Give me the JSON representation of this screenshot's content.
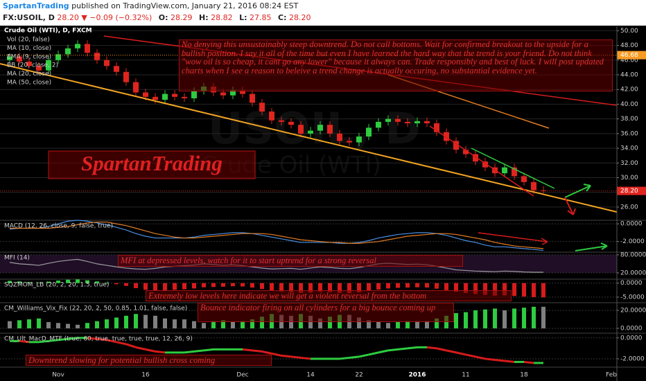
{
  "header": {
    "author": "SpartanTrading",
    "published": "published on TradingView.com, January 21, 2016 08:24 EST",
    "symbol": "FX:USOIL, D",
    "last": "28.20",
    "change": "▼ −0.09 (−0.32%)",
    "open_label": "O:",
    "open": "28.29",
    "high_label": "H:",
    "high": "28.82",
    "low_label": "L:",
    "low": "27.85",
    "close_label": "C:",
    "close": "28.20"
  },
  "chart_data": [
    {
      "type": "candlestick",
      "title": "Crude Oil (WTI), D, FXCM",
      "indicators": [
        "Vol (20, false)",
        "MA (10, close)",
        "EMA (9, close)",
        "BB (20, close, 2)",
        "MA (20, close)",
        "MA (50, close)"
      ],
      "watermark_symbol": "USOIL, D",
      "watermark_name": "Crude Oil (WTI)",
      "logo": "SpartanTrading",
      "annotation": "No denying this unsustainably steep downtrend. Do not call bottoms. Wait for confirmed breakout to the upside for a bullish position. I say it all of the time but even I have learned the hard way that the trend is your friend. Do not think \"wow oil is so cheap, it cant go any lower\" because it always can. Trade responsibly and best of luck. I will post updated charts when I see a reason to beleive a trend change is actually occuring, no substantial evidence yet.",
      "categories": [
        null,
        null,
        null,
        null,
        null,
        "Nov",
        null,
        null,
        null,
        null,
        null,
        null,
        null,
        null,
        "16",
        null,
        null,
        null,
        null,
        null,
        null,
        null,
        null,
        null,
        "Dec",
        null,
        null,
        null,
        null,
        null,
        null,
        "14",
        null,
        null,
        null,
        null,
        "22",
        null,
        null,
        null,
        null,
        null,
        "2016",
        null,
        null,
        null,
        null,
        "11",
        null,
        null,
        null,
        null,
        null,
        "18",
        null,
        null,
        null,
        null,
        null,
        null,
        null,
        null,
        "Feb"
      ],
      "candles": [
        [
          46.0,
          46.9,
          45.6,
          46.5
        ],
        [
          46.5,
          47.0,
          45.4,
          45.8
        ],
        [
          45.8,
          46.3,
          44.8,
          45.2
        ],
        [
          45.2,
          45.7,
          44.1,
          44.6
        ],
        [
          44.6,
          46.5,
          44.1,
          46.0
        ],
        [
          46.0,
          47.3,
          45.5,
          46.8
        ],
        [
          46.8,
          48.1,
          46.3,
          47.6
        ],
        [
          47.6,
          48.7,
          47.1,
          48.2
        ],
        [
          48.2,
          48.7,
          46.5,
          47.0
        ],
        [
          47.0,
          47.5,
          45.5,
          46.0
        ],
        [
          46.0,
          46.5,
          44.7,
          45.2
        ],
        [
          45.2,
          45.7,
          43.9,
          44.4
        ],
        [
          44.4,
          44.9,
          42.5,
          43.0
        ],
        [
          43.0,
          43.5,
          41.1,
          41.6
        ],
        [
          41.6,
          42.1,
          40.5,
          41.0
        ],
        [
          41.0,
          41.5,
          40.1,
          40.6
        ],
        [
          40.6,
          41.9,
          40.1,
          41.4
        ],
        [
          41.4,
          41.9,
          40.5,
          41.0
        ],
        [
          41.0,
          41.5,
          40.3,
          40.8
        ],
        [
          40.8,
          42.3,
          40.3,
          41.8
        ],
        [
          41.8,
          42.9,
          41.3,
          42.4
        ],
        [
          42.4,
          42.9,
          41.1,
          41.6
        ],
        [
          41.6,
          42.1,
          40.7,
          41.2
        ],
        [
          41.2,
          42.4,
          40.7,
          41.9
        ],
        [
          41.9,
          42.4,
          40.9,
          41.4
        ],
        [
          41.4,
          41.9,
          39.7,
          40.2
        ],
        [
          40.2,
          40.7,
          38.5,
          39.0
        ],
        [
          39.0,
          39.5,
          37.3,
          37.8
        ],
        [
          37.8,
          38.3,
          37.1,
          37.6
        ],
        [
          37.6,
          38.1,
          36.7,
          37.2
        ],
        [
          37.2,
          37.7,
          35.5,
          36.0
        ],
        [
          36.0,
          36.9,
          35.5,
          36.4
        ],
        [
          36.4,
          37.7,
          35.9,
          37.2
        ],
        [
          37.2,
          37.7,
          35.5,
          36.0
        ],
        [
          36.0,
          36.5,
          34.5,
          35.0
        ],
        [
          35.0,
          35.5,
          34.3,
          34.8
        ],
        [
          34.8,
          36.1,
          34.3,
          35.6
        ],
        [
          35.6,
          37.3,
          35.1,
          36.8
        ],
        [
          36.8,
          38.1,
          36.3,
          37.6
        ],
        [
          37.6,
          38.5,
          37.1,
          38.0
        ],
        [
          38.0,
          38.5,
          37.1,
          37.6
        ],
        [
          37.6,
          38.1,
          36.9,
          37.4
        ],
        [
          37.4,
          38.2,
          36.9,
          37.7
        ],
        [
          37.7,
          38.2,
          36.9,
          37.4
        ],
        [
          37.4,
          37.9,
          35.7,
          36.2
        ],
        [
          36.2,
          36.7,
          34.5,
          35.0
        ],
        [
          35.0,
          35.5,
          33.3,
          33.8
        ],
        [
          33.8,
          34.3,
          32.7,
          33.2
        ],
        [
          33.2,
          33.7,
          31.7,
          32.2
        ],
        [
          32.2,
          32.7,
          30.9,
          31.4
        ],
        [
          31.4,
          31.9,
          30.1,
          30.6
        ],
        [
          30.6,
          31.9,
          30.1,
          31.4
        ],
        [
          31.4,
          31.9,
          29.7,
          30.2
        ],
        [
          30.2,
          30.7,
          28.9,
          29.4
        ],
        [
          29.4,
          29.9,
          27.8,
          28.29
        ],
        [
          28.29,
          28.82,
          27.85,
          28.2
        ],
        null,
        null,
        null,
        null,
        null,
        null,
        null
      ],
      "up_color": "#2ecc40",
      "down_color": "#e0251f",
      "price_markers": [
        {
          "value": 28.2,
          "label": "28.20",
          "color": "#e0251f"
        },
        {
          "value": 46.68,
          "label": "46.68",
          "color": "#f79b23"
        }
      ],
      "ylim": [
        24.2,
        50.6
      ],
      "yticks": [
        {
          "value": 26,
          "label": "26.00"
        },
        {
          "value": 28,
          "label": "28.00"
        },
        {
          "value": 30,
          "label": "30.00"
        },
        {
          "value": 32,
          "label": "32.00"
        },
        {
          "value": 34,
          "label": "34.00"
        },
        {
          "value": 36,
          "label": "36.00"
        },
        {
          "value": 38,
          "label": "38.00"
        },
        {
          "value": 40,
          "label": "40.00"
        },
        {
          "value": 42,
          "label": "42.00"
        },
        {
          "value": 44,
          "label": "44.00"
        },
        {
          "value": 46,
          "label": "46.00"
        },
        {
          "value": 48,
          "label": "48.00"
        },
        {
          "value": 50,
          "label": "50.00"
        }
      ],
      "grid": true
    },
    {
      "type": "line",
      "title": "MACD (12, 26, close, 9, false, true)",
      "series": [
        {
          "color": "#4a90e2",
          "values": [
            -0.6,
            -0.5,
            -0.5,
            -0.5,
            -0.3,
            0.0,
            0.3,
            0.4,
            0.3,
            0.1,
            -0.1,
            -0.4,
            -0.7,
            -1.1,
            -1.4,
            -1.6,
            -1.6,
            -1.6,
            -1.6,
            -1.5,
            -1.3,
            -1.2,
            -1.1,
            -1.0,
            -1.0,
            -1.1,
            -1.3,
            -1.5,
            -1.7,
            -1.9,
            -2.1,
            -2.1,
            -2.1,
            -2.1,
            -2.2,
            -2.2,
            -2.1,
            -1.9,
            -1.6,
            -1.4,
            -1.2,
            -1.1,
            -1.0,
            -1.0,
            -1.1,
            -1.3,
            -1.6,
            -1.9,
            -2.1,
            -2.4,
            -2.6,
            -2.6,
            -2.7,
            -2.8,
            -2.9,
            -3.0
          ]
        },
        {
          "color": "#e67e22",
          "values": [
            -0.5,
            -0.5,
            -0.5,
            -0.5,
            -0.5,
            -0.4,
            -0.3,
            -0.1,
            0.1,
            0.2,
            0.2,
            0.0,
            -0.2,
            -0.5,
            -0.8,
            -1.1,
            -1.3,
            -1.5,
            -1.6,
            -1.6,
            -1.5,
            -1.4,
            -1.3,
            -1.2,
            -1.1,
            -1.1,
            -1.1,
            -1.2,
            -1.4,
            -1.6,
            -1.8,
            -1.9,
            -2.0,
            -2.1,
            -2.1,
            -2.2,
            -2.2,
            -2.1,
            -2.0,
            -1.8,
            -1.6,
            -1.4,
            -1.3,
            -1.2,
            -1.1,
            -1.1,
            -1.2,
            -1.4,
            -1.6,
            -1.8,
            -2.1,
            -2.3,
            -2.5,
            -2.6,
            -2.7,
            -2.8
          ]
        }
      ],
      "ylim": [
        -3.2,
        0.4
      ],
      "yticks": [
        {
          "value": 0,
          "label": "0.0000"
        },
        {
          "value": -2,
          "label": "-2.0000"
        }
      ]
    },
    {
      "type": "line",
      "title": "MFI (14)",
      "annotation": "MFI at depressed levels, watch for it to start uptrend for a strong reversal",
      "series": [
        {
          "color": "#9e9e9e",
          "values": [
            55,
            50,
            48,
            45,
            52,
            58,
            62,
            65,
            58,
            50,
            45,
            40,
            36,
            33,
            32,
            35,
            40,
            42,
            44,
            46,
            50,
            48,
            45,
            47,
            44,
            40,
            36,
            33,
            34,
            35,
            32,
            36,
            40,
            38,
            35,
            34,
            38,
            44,
            50,
            52,
            50,
            48,
            49,
            47,
            42,
            36,
            30,
            28,
            26,
            25,
            24,
            26,
            25,
            23,
            22,
            22
          ]
        }
      ],
      "band": true,
      "ylim": [
        -1,
        89
      ],
      "yticks": [
        {
          "value": 80,
          "label": "80.0000"
        },
        {
          "value": 20,
          "label": "20.0000"
        }
      ]
    },
    {
      "type": "bar",
      "title": "SQZMOM_LB (20, 2, 20, 1.5, true)",
      "annotation": "Extremely low levels here indicate we will get a violent reversal from the bottom",
      "values": [
        0.8,
        0.6,
        0.3,
        0.2,
        0.5,
        0.9,
        1.2,
        1.3,
        1.0,
        0.6,
        0.1,
        -0.4,
        -1.0,
        -1.8,
        -2.4,
        -2.8,
        -2.6,
        -2.4,
        -2.2,
        -1.9,
        -1.5,
        -1.4,
        -1.3,
        -1.1,
        -1.2,
        -1.6,
        -2.1,
        -2.7,
        -3.0,
        -3.2,
        -3.5,
        -3.4,
        -3.1,
        -3.2,
        -3.5,
        -3.6,
        -3.3,
        -2.8,
        -2.3,
        -1.9,
        -1.7,
        -1.6,
        -1.5,
        -1.6,
        -2.0,
        -2.5,
        -3.1,
        -3.5,
        -3.9,
        -4.2,
        -4.5,
        -4.4,
        -4.6,
        -4.8,
        -5.0,
        -5.1
      ],
      "pos_color": "#2ecc40",
      "neg_color": "#d81b1b",
      "ylim": [
        -7,
        1.4
      ],
      "yticks": [
        {
          "value": 0,
          "label": "0.0000"
        },
        {
          "value": -5,
          "label": "-5.0000"
        }
      ]
    },
    {
      "type": "bar",
      "title": "CM_Williams_Vix_Fix (22, 20, 2, 50, 0.85, 1.01, false, false)",
      "annotation": "Bounce indicator firing on all cylinders for a big bounce coming up",
      "values": [
        8,
        9,
        10,
        11,
        7,
        6,
        5,
        4,
        6,
        8,
        10,
        12,
        14,
        16,
        15,
        14,
        11,
        10,
        10,
        8,
        6,
        8,
        9,
        7,
        8,
        10,
        13,
        16,
        15,
        14,
        16,
        14,
        11,
        13,
        15,
        15,
        12,
        9,
        7,
        6,
        7,
        8,
        8,
        8,
        11,
        14,
        17,
        18,
        20,
        21,
        22,
        20,
        22,
        23,
        24,
        24
      ],
      "pos_color": "#808080",
      "rise_color": "#2ecc40",
      "ylim": [
        -5.4,
        28.5
      ],
      "yticks": [
        {
          "value": 20,
          "label": "20.0000"
        },
        {
          "value": 0,
          "label": "0.0000"
        }
      ]
    },
    {
      "type": "line",
      "title": "CM_Ult_MacD_MTF (true, 60, true, true, true, true, 12, 26, 9)",
      "annotation": "Downtrend slowing for potential bullish cross coming",
      "series": [
        {
          "rise_color": "#2ecc40",
          "fall_color": "#d81b1b",
          "values": [
            -0.3,
            -0.3,
            -0.4,
            -0.4,
            -0.3,
            -0.2,
            -0.1,
            0.0,
            0.0,
            -0.1,
            -0.2,
            -0.4,
            -0.6,
            -0.9,
            -1.1,
            -1.3,
            -1.4,
            -1.4,
            -1.4,
            -1.3,
            -1.2,
            -1.1,
            -1.1,
            -1.1,
            -1.1,
            -1.2,
            -1.3,
            -1.5,
            -1.7,
            -1.8,
            -1.9,
            -2.0,
            -2.0,
            -2.0,
            -2.0,
            -1.9,
            -1.8,
            -1.6,
            -1.4,
            -1.2,
            -1.1,
            -1.0,
            -0.9,
            -0.9,
            -1.0,
            -1.2,
            -1.4,
            -1.6,
            -1.8,
            -2.0,
            -2.1,
            -2.2,
            -2.3,
            -2.3,
            -2.4,
            -2.4
          ]
        }
      ],
      "ylim": [
        -2.8,
        0.45
      ],
      "yticks": [
        {
          "value": 0,
          "label": "0.0000"
        },
        {
          "value": -2,
          "label": "-2.0000"
        }
      ]
    }
  ]
}
